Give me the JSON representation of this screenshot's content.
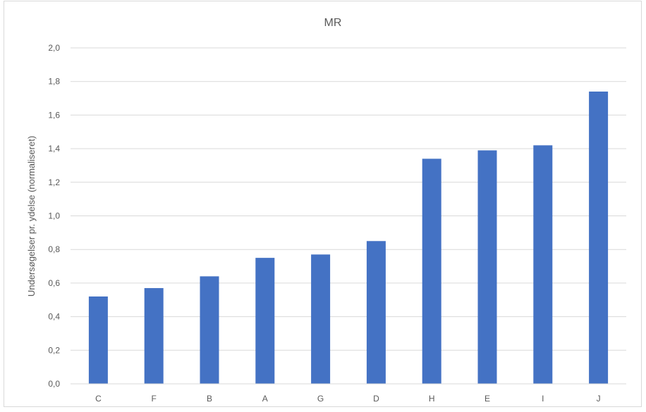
{
  "chart_data": {
    "type": "bar",
    "title": "MR",
    "xlabel": "",
    "ylabel": "Undersøgelser pr. ydelse (normaliseret)",
    "categories": [
      "C",
      "F",
      "B",
      "A",
      "G",
      "D",
      "H",
      "E",
      "I",
      "J"
    ],
    "values": [
      0.52,
      0.57,
      0.64,
      0.75,
      0.77,
      0.85,
      1.34,
      1.39,
      1.42,
      1.74
    ],
    "ylim": [
      0,
      2.0
    ],
    "yticks": [
      "0,0",
      "0,2",
      "0,4",
      "0,6",
      "0,8",
      "1,0",
      "1,2",
      "1,4",
      "1,6",
      "1,8",
      "2,0"
    ],
    "grid": true,
    "legend": "none",
    "bar_color": "#4472C4",
    "grid_color": "#d9d9d9",
    "text_color": "#595959"
  }
}
